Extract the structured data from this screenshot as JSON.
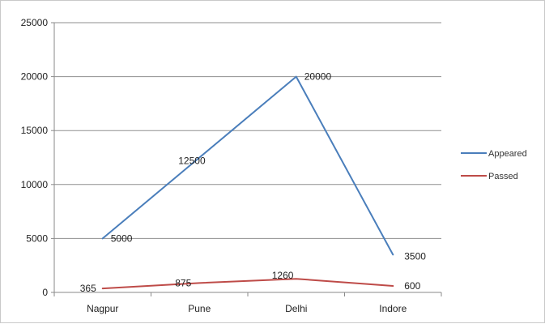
{
  "chart_data": {
    "type": "line",
    "categories": [
      "Nagpur",
      "Pune",
      "Delhi",
      "Indore"
    ],
    "series": [
      {
        "name": "Appeared",
        "values": [
          5000,
          12500,
          20000,
          3500
        ],
        "labels": [
          "5000",
          "12500",
          "20000",
          "3500"
        ],
        "color": "#4a7ebb"
      },
      {
        "name": "Passed",
        "values": [
          365,
          875,
          1260,
          600
        ],
        "labels": [
          "365",
          "875",
          "1260",
          "600"
        ],
        "color": "#be4b48"
      }
    ],
    "yticks": [
      "0",
      "5000",
      "10000",
      "15000",
      "20000",
      "25000"
    ],
    "ylim": [
      0,
      25000
    ],
    "grid": true,
    "legend_position": "right"
  }
}
